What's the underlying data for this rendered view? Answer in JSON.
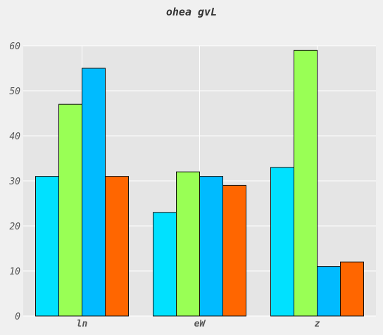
{
  "chart_data": {
    "type": "bar",
    "title": "ohea gvL",
    "categories": [
      "ln",
      "eW",
      "z"
    ],
    "series": [
      {
        "values": [
          31,
          23,
          33
        ],
        "color": "#00e1ff"
      },
      {
        "values": [
          47,
          32,
          59
        ],
        "color": "#99ff55"
      },
      {
        "values": [
          55,
          31,
          11
        ],
        "color": "#00bbff"
      },
      {
        "values": [
          31,
          29,
          12
        ],
        "color": "#ff6600"
      }
    ],
    "ylim": [
      0,
      60
    ],
    "yticks": [
      0,
      10,
      20,
      30,
      40,
      50,
      60
    ],
    "grid": true,
    "plot_background": "#e5e5e5",
    "xlabel": "",
    "ylabel": ""
  }
}
